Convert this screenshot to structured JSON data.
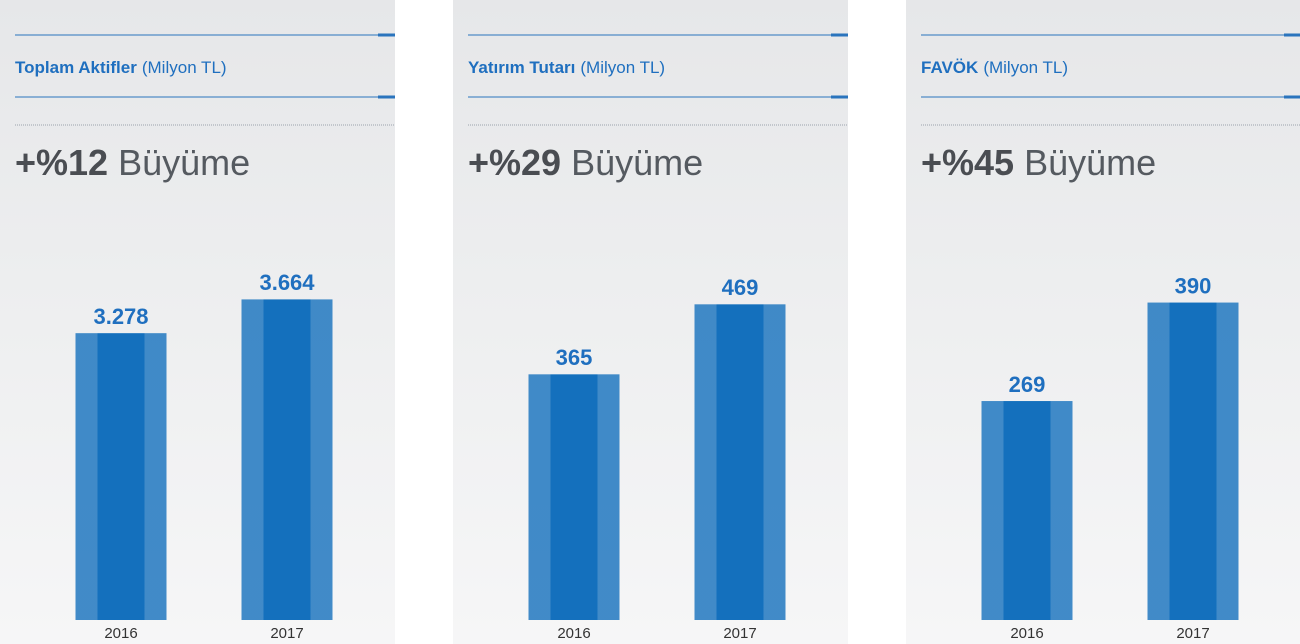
{
  "chart_data": [
    {
      "type": "bar",
      "title": "Toplam Aktifler",
      "subtitle": "(Milyon TL)",
      "growth": "+%12",
      "growth_label": "Büyüme",
      "categories": [
        "2016",
        "2017"
      ],
      "values": [
        3278,
        3664
      ],
      "value_labels": [
        "3.278",
        "3.664"
      ],
      "color": "#1470bd",
      "ylim": [
        0,
        4000
      ]
    },
    {
      "type": "bar",
      "title": "Yatırım Tutarı",
      "subtitle": "(Milyon TL)",
      "growth": "+%29",
      "growth_label": "Büyüme",
      "categories": [
        "2016",
        "2017"
      ],
      "values": [
        365,
        469
      ],
      "color": "#1470bd",
      "ylim": [
        0,
        520
      ]
    },
    {
      "type": "bar",
      "title": "FAVÖK",
      "subtitle": "(Milyon TL)",
      "growth": "+%45",
      "growth_label": "Büyüme",
      "categories": [
        "2016",
        "2017"
      ],
      "values": [
        269,
        390
      ],
      "color": "#1470bd",
      "ylim": [
        0,
        430
      ]
    }
  ]
}
